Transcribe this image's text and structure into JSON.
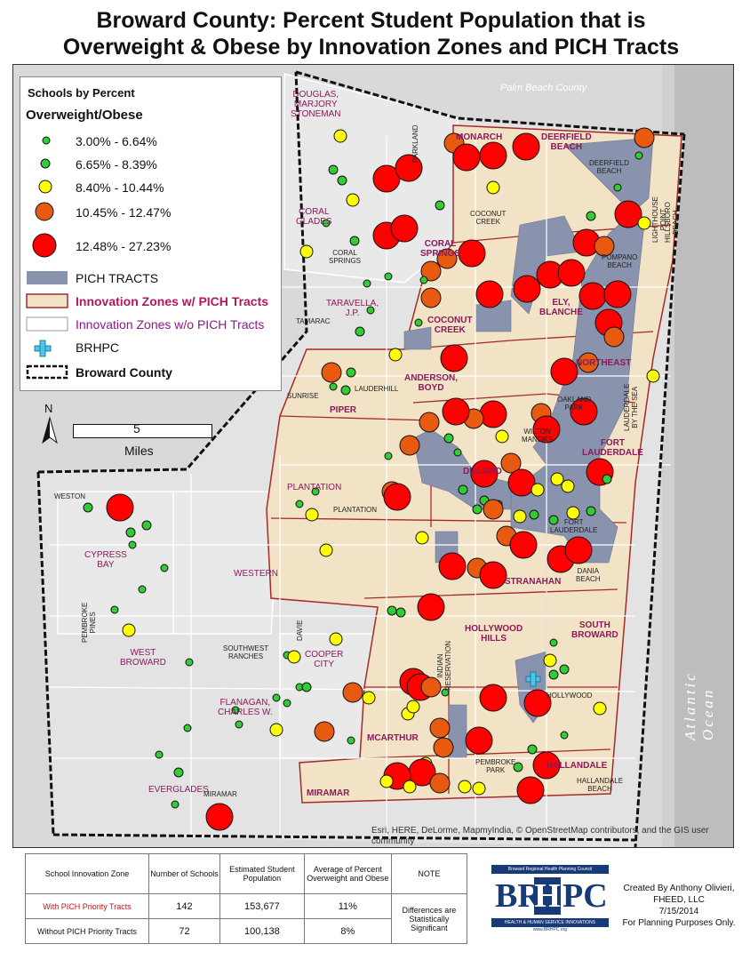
{
  "title": {
    "line1": "Broward County: Percent Student Population that is",
    "line2": "Overweight & Obese by Innovation Zones and PICH Tracts"
  },
  "legend": {
    "heading1": "Schools by Percent",
    "heading2": "Overweight/Obese",
    "classes": [
      {
        "label": "3.00% - 6.64%",
        "color": "#33cc33"
      },
      {
        "label": "6.65% - 8.39%",
        "color": "#33cc33"
      },
      {
        "label": "8.40% - 10.44%",
        "color": "#ffff00"
      },
      {
        "label": "10.45% - 12.47%",
        "color": "#e85a10"
      },
      {
        "label": "12.48% - 27.23%",
        "color": "#ff0000"
      }
    ],
    "pich": "PICH TRACTS",
    "inno_with": "Innovation Zones w/ PICH Tracts",
    "inno_without": "Innovation Zones w/o PICH Tracts",
    "brhpc": "BRHPC",
    "county": "Broward County"
  },
  "colors": {
    "pich": "#8a93ad",
    "zone_fill": "#f2e3c6",
    "zone_border": "#a52a2a",
    "land": "#e6e6e6",
    "ocean": "#bfbfbf",
    "brhpc_cross": "#4ec3e8"
  },
  "scale": {
    "value": "5",
    "unit": "Miles"
  },
  "compass": "N",
  "map_labels": {
    "palm_beach": "Palm Beach County",
    "ocean": "Atlantic Ocean",
    "zones": {
      "monarch": "MONARCH",
      "deerfield": "DEERFIELD\nBEACH",
      "coral_springs": "CORAL\nSPRINGS",
      "coconut_creek": "COCONUT\nCREEK",
      "ely": "ELY,\nBLANCHE",
      "northeast": "NORTHEAST",
      "anderson": "ANDERSON,\nBOYD",
      "piper": "PIPER",
      "fort_lauderdale": "FORT\nLAUDERDALE",
      "dillard": "DILLARD",
      "stranahan": "STRANAHAN",
      "hollywood_hills": "HOLLYWOOD\nHILLS",
      "south_broward": "SOUTH\nBROWARD",
      "mcarthur": "MCARTHUR",
      "hallandale": "HALLANDALE",
      "miramar": "MIRAMAR"
    },
    "regions": {
      "douglas": "DOUGLAS,\nMARJORY\nSTONEMAN",
      "coral_glades": "CORAL\nGLADES",
      "taravella": "TARAVELLA,\nJ.P.",
      "plantation": "PLANTATION",
      "cypress_bay": "CYPRESS\nBAY",
      "western": "WESTERN",
      "west_broward": "WEST\nBROWARD",
      "cooper_city": "COOPER\nCITY",
      "flanagan": "FLANAGAN,\nCHARLES W.",
      "everglades": "EVERGLADES"
    },
    "cities": {
      "parkland": "PARKLAND",
      "coconut_creek": "COCONUT\nCREEK",
      "deerfield_beach": "DEERFIELD\nBEACH",
      "lighthouse": "LIGHTHOUSE\nPOINT",
      "hillsboro": "HILLSBORO\nBEACH",
      "coral_springs": "CORAL\nSPRINGS",
      "pompano": "POMPANO\nBEACH",
      "tamarac": "TAMARAC",
      "sunrise": "SUNRISE",
      "lauderhill": "LAUDERHILL",
      "oakland_park": "OAKLAND\nPARK",
      "lbts": "LAUDERDALE\nBY THE SEA",
      "wilton_manors": "WILTON\nMANORS",
      "plantation": "PLANTATION",
      "weston": "WESTON",
      "fort_lauderdale": "FORT\nLAUDERDALE",
      "dania": "DANIA\nBEACH",
      "pembroke_pines": "PEMBROKE\nPINES",
      "southwest_ranches": "SOUTHWEST\nRANCHES",
      "davie": "DAVIE",
      "indian_res": "INDIAN\nRESERVATION",
      "hollywood": "HOLLYWOOD",
      "pembroke_park": "PEMBROKE\nPARK",
      "miramar": "MIRAMAR",
      "hallandale_beach": "HALLANDALE\nBEACH"
    }
  },
  "attribution": "Esri, HERE, DeLorme, MapmyIndia, © OpenStreetMap contributors, and the GIS user community",
  "table": {
    "headers": [
      "School Innovation Zone",
      "Number of Schools",
      "Estimated Student Population",
      "Average of Percent Overweight and Obese",
      "NOTE"
    ],
    "rows": [
      {
        "zone": "With PICH Priority Tracts",
        "schools": "142",
        "population": "153,677",
        "average": "11%"
      },
      {
        "zone": "Without PICH Priority Tracts",
        "schools": "72",
        "population": "100,138",
        "average": "8%"
      }
    ],
    "note": "Differences are Statistically Significant"
  },
  "logo": {
    "council": "Broward Regional Health Planning Council",
    "word_left": "BR",
    "word_mid": "H",
    "word_right": "PC",
    "tagline": "HEALTH & HUMAN SERVICE INNOVATIONS",
    "url": "www.BRHPC.org"
  },
  "credit": {
    "line1": "Created By Anthony Olivieri,",
    "line2": "FHEED, LLC",
    "line3": "7/15/2014",
    "line4": "For Planning Purposes Only."
  }
}
